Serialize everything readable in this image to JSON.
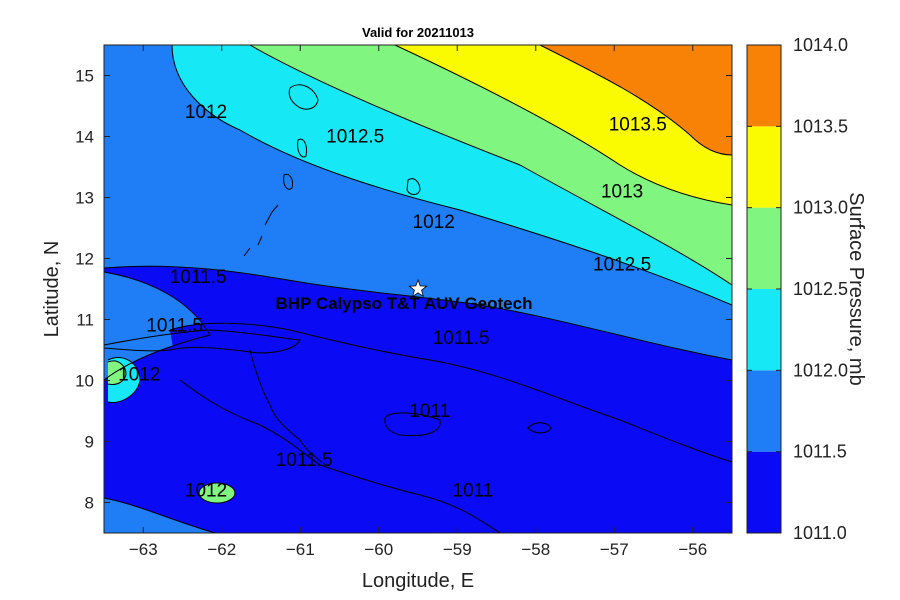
{
  "chart_data": {
    "type": "contour",
    "title": "Valid for 20211013",
    "xlabel": "Longitude, E",
    "ylabel": "Latitude, N",
    "xlim": [
      -63.5,
      -55.5
    ],
    "ylim": [
      7.5,
      15.5
    ],
    "xticks": [
      -63,
      -62,
      -61,
      -60,
      -59,
      -58,
      -57,
      -56
    ],
    "xtick_labels": [
      "−63",
      "−62",
      "−61",
      "−60",
      "−59",
      "−58",
      "−57",
      "−56"
    ],
    "yticks": [
      8,
      9,
      10,
      11,
      12,
      13,
      14,
      15
    ],
    "ytick_labels": [
      "8",
      "9",
      "10",
      "11",
      "12",
      "13",
      "14",
      "15"
    ],
    "colorbar": {
      "label": "Surface Pressure, mb",
      "range": [
        1011.0,
        1014.0
      ],
      "ticks": [
        "1011.0",
        "1011.5",
        "1012.0",
        "1012.5",
        "1013.0",
        "1013.5",
        "1014.0"
      ],
      "bands": [
        {
          "from": 1011.0,
          "to": 1011.5,
          "color": "#0a0af5"
        },
        {
          "from": 1011.5,
          "to": 1012.0,
          "color": "#1f7ef5"
        },
        {
          "from": 1012.0,
          "to": 1012.5,
          "color": "#16e8f5"
        },
        {
          "from": 1012.5,
          "to": 1013.0,
          "color": "#80f580"
        },
        {
          "from": 1013.0,
          "to": 1013.5,
          "color": "#fafa00"
        },
        {
          "from": 1013.5,
          "to": 1014.0,
          "color": "#f78205"
        }
      ]
    },
    "contour_labels": [
      {
        "text": "1013.5",
        "lon": -56.7,
        "lat": 14.2
      },
      {
        "text": "1013",
        "lon": -56.9,
        "lat": 13.1
      },
      {
        "text": "1012.5",
        "lon": -60.3,
        "lat": 14.0
      },
      {
        "text": "1012.5",
        "lon": -56.9,
        "lat": 11.9
      },
      {
        "text": "1012",
        "lon": -62.2,
        "lat": 14.4
      },
      {
        "text": "1012",
        "lon": -59.3,
        "lat": 12.6
      },
      {
        "text": "1012",
        "lon": -63.05,
        "lat": 10.1
      },
      {
        "text": "1012",
        "lon": -62.2,
        "lat": 8.2
      },
      {
        "text": "1011.5",
        "lon": -62.3,
        "lat": 11.7
      },
      {
        "text": "1011.5",
        "lon": -62.6,
        "lat": 10.9
      },
      {
        "text": "1011.5",
        "lon": -58.95,
        "lat": 10.7
      },
      {
        "text": "1011.5",
        "lon": -60.95,
        "lat": 8.7
      },
      {
        "text": "1011",
        "lon": -59.35,
        "lat": 9.5
      },
      {
        "text": "1011",
        "lon": -58.8,
        "lat": 8.2
      }
    ],
    "marker": {
      "label": "BHP Calypso T&T AUV Geotech",
      "lon": -59.5,
      "lat": 11.5,
      "symbol": "star"
    }
  }
}
